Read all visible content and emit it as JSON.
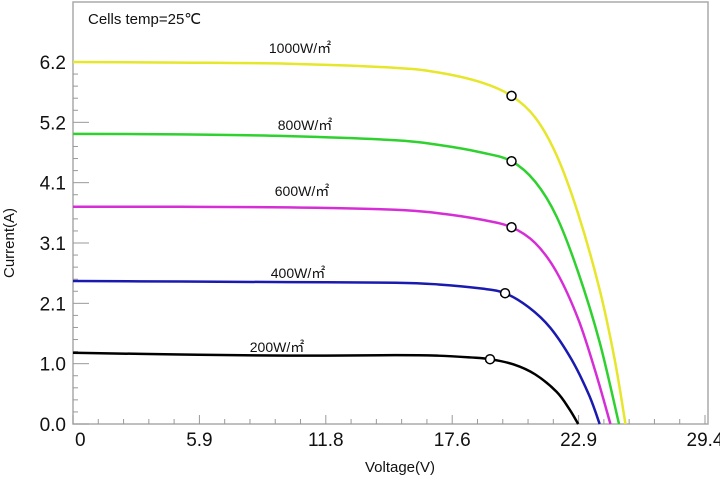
{
  "chart_data": {
    "type": "line",
    "title": "Cells temp=25℃",
    "xlabel": "Voltage(V)",
    "ylabel": "Current(A)",
    "xlim": [
      0,
      29.4
    ],
    "ylim": [
      0,
      6.2
    ],
    "x_ticks": [
      "0",
      "5.9",
      "11.8",
      "17.6",
      "22.9",
      "29.4"
    ],
    "y_ticks": [
      "0.0",
      "1.0",
      "2.1",
      "3.1",
      "4.1",
      "5.2",
      "6.2"
    ],
    "grid": false,
    "legend": "inline labels",
    "series": [
      {
        "name": "1000W/㎡",
        "color": "#e6e62a",
        "points": [
          [
            0,
            6.2
          ],
          [
            5,
            6.19
          ],
          [
            10,
            6.17
          ],
          [
            15,
            6.1
          ],
          [
            17,
            6.02
          ],
          [
            19,
            5.85
          ],
          [
            20.4,
            5.62
          ],
          [
            21.5,
            5.25
          ],
          [
            22.5,
            4.6
          ],
          [
            23.5,
            3.6
          ],
          [
            24.5,
            2.3
          ],
          [
            25.2,
            1.1
          ],
          [
            25.7,
            0
          ]
        ],
        "mpp": [
          20.4,
          5.62
        ]
      },
      {
        "name": "800W/㎡",
        "color": "#2ed12e",
        "points": [
          [
            0,
            4.97
          ],
          [
            5,
            4.96
          ],
          [
            10,
            4.93
          ],
          [
            15,
            4.86
          ],
          [
            17,
            4.78
          ],
          [
            19,
            4.65
          ],
          [
            20.4,
            4.5
          ],
          [
            21.5,
            4.15
          ],
          [
            22.5,
            3.55
          ],
          [
            23.5,
            2.6
          ],
          [
            24.5,
            1.4
          ],
          [
            25.4,
            0
          ]
        ],
        "mpp": [
          20.4,
          4.5
        ]
      },
      {
        "name": "600W/㎡",
        "color": "#d62ed6",
        "points": [
          [
            0,
            3.72
          ],
          [
            5,
            3.72
          ],
          [
            10,
            3.71
          ],
          [
            15,
            3.67
          ],
          [
            17,
            3.61
          ],
          [
            19,
            3.5
          ],
          [
            20.4,
            3.37
          ],
          [
            21.5,
            3.1
          ],
          [
            22.5,
            2.6
          ],
          [
            23.5,
            1.8
          ],
          [
            24.3,
            0.9
          ],
          [
            25.0,
            0
          ]
        ],
        "mpp": [
          20.4,
          3.37
        ]
      },
      {
        "name": "400W/㎡",
        "color": "#1a1ab0",
        "points": [
          [
            0,
            2.45
          ],
          [
            5,
            2.44
          ],
          [
            10,
            2.43
          ],
          [
            15,
            2.42
          ],
          [
            17,
            2.39
          ],
          [
            19,
            2.32
          ],
          [
            20.1,
            2.24
          ],
          [
            21.2,
            2.0
          ],
          [
            22.2,
            1.65
          ],
          [
            23.2,
            1.1
          ],
          [
            24,
            0.5
          ],
          [
            24.5,
            0
          ]
        ],
        "mpp": [
          20.1,
          2.24
        ]
      },
      {
        "name": "200W/㎡",
        "color": "#000000",
        "points": [
          [
            0,
            1.22
          ],
          [
            5,
            1.19
          ],
          [
            10,
            1.17
          ],
          [
            15,
            1.18
          ],
          [
            17,
            1.17
          ],
          [
            18.5,
            1.14
          ],
          [
            19.4,
            1.11
          ],
          [
            20.5,
            1.02
          ],
          [
            21.5,
            0.85
          ],
          [
            22.5,
            0.55
          ],
          [
            23.1,
            0.25
          ],
          [
            23.5,
            0
          ]
        ],
        "mpp": [
          19.4,
          1.11
        ]
      }
    ]
  }
}
